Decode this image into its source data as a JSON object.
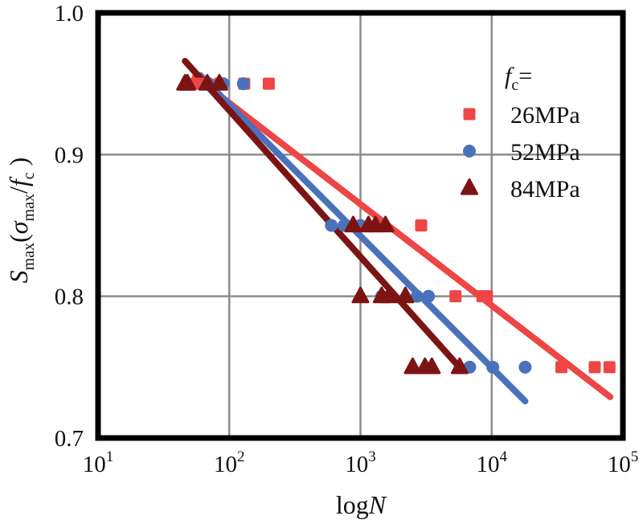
{
  "chart_data": {
    "type": "scatter",
    "title": "",
    "xlabel": {
      "main": "log",
      "italic": "N"
    },
    "ylabel": {
      "S": "S",
      "S_sub": "max",
      "open": "(",
      "sigma": "σ",
      "sigma_sub": "max",
      "slash": "/",
      "f": "f",
      "f_sub": "c",
      "close": " )"
    },
    "xscale": "log10",
    "xlim": [
      10,
      100000
    ],
    "ylim": [
      0.7,
      1.0
    ],
    "x_ticks": [
      {
        "base": "10",
        "exp": "1",
        "value": 10
      },
      {
        "base": "10",
        "exp": "2",
        "value": 100
      },
      {
        "base": "10",
        "exp": "3",
        "value": 1000
      },
      {
        "base": "10",
        "exp": "4",
        "value": 10000
      },
      {
        "base": "10",
        "exp": "5",
        "value": 100000
      }
    ],
    "y_ticks": [
      {
        "label": "0.7",
        "value": 0.7
      },
      {
        "label": "0.8",
        "value": 0.8
      },
      {
        "label": "0.9",
        "value": 0.9
      },
      {
        "label": "1.0",
        "value": 1.0
      }
    ],
    "grid": true,
    "legend": {
      "title": {
        "f": "f",
        "sub": "c",
        "eq": "="
      },
      "position": "top-right"
    },
    "series": [
      {
        "name": "26MPa",
        "marker": "square",
        "color": "#ee4545",
        "points": [
          {
            "x": 55,
            "y": 0.95
          },
          {
            "x": 65,
            "y": 0.95
          },
          {
            "x": 85,
            "y": 0.95
          },
          {
            "x": 130,
            "y": 0.95
          },
          {
            "x": 200,
            "y": 0.95
          },
          {
            "x": 2900,
            "y": 0.85
          },
          {
            "x": 5300,
            "y": 0.8
          },
          {
            "x": 8500,
            "y": 0.8
          },
          {
            "x": 9200,
            "y": 0.8
          },
          {
            "x": 34000,
            "y": 0.75
          },
          {
            "x": 61000,
            "y": 0.75
          },
          {
            "x": 79000,
            "y": 0.75
          }
        ],
        "fit": {
          "x": [
            55,
            80000
          ],
          "y": [
            0.955,
            0.729
          ]
        }
      },
      {
        "name": "52MPa",
        "marker": "circle",
        "color": "#4a72bc",
        "points": [
          {
            "x": 70,
            "y": 0.95
          },
          {
            "x": 90,
            "y": 0.95
          },
          {
            "x": 128,
            "y": 0.95
          },
          {
            "x": 600,
            "y": 0.85
          },
          {
            "x": 750,
            "y": 0.85
          },
          {
            "x": 1000,
            "y": 0.85
          },
          {
            "x": 1450,
            "y": 0.8
          },
          {
            "x": 2700,
            "y": 0.8
          },
          {
            "x": 3300,
            "y": 0.8
          },
          {
            "x": 6800,
            "y": 0.75
          },
          {
            "x": 10200,
            "y": 0.75
          },
          {
            "x": 18000,
            "y": 0.75
          }
        ],
        "fit": {
          "x": [
            60,
            18000
          ],
          "y": [
            0.956,
            0.726
          ]
        }
      },
      {
        "name": "84MPa",
        "marker": "triangle",
        "color": "#7c1414",
        "points": [
          {
            "x": 46,
            "y": 0.95
          },
          {
            "x": 48,
            "y": 0.95
          },
          {
            "x": 68,
            "y": 0.95
          },
          {
            "x": 84,
            "y": 0.95
          },
          {
            "x": 880,
            "y": 0.85
          },
          {
            "x": 1150,
            "y": 0.85
          },
          {
            "x": 1300,
            "y": 0.85
          },
          {
            "x": 1550,
            "y": 0.85
          },
          {
            "x": 1000,
            "y": 0.8
          },
          {
            "x": 1450,
            "y": 0.8
          },
          {
            "x": 1650,
            "y": 0.8
          },
          {
            "x": 2200,
            "y": 0.8
          },
          {
            "x": 2500,
            "y": 0.75
          },
          {
            "x": 3100,
            "y": 0.75
          },
          {
            "x": 3500,
            "y": 0.75
          },
          {
            "x": 5700,
            "y": 0.75
          }
        ],
        "fit": {
          "x": [
            46,
            5800
          ],
          "y": [
            0.966,
            0.749
          ]
        }
      }
    ]
  }
}
